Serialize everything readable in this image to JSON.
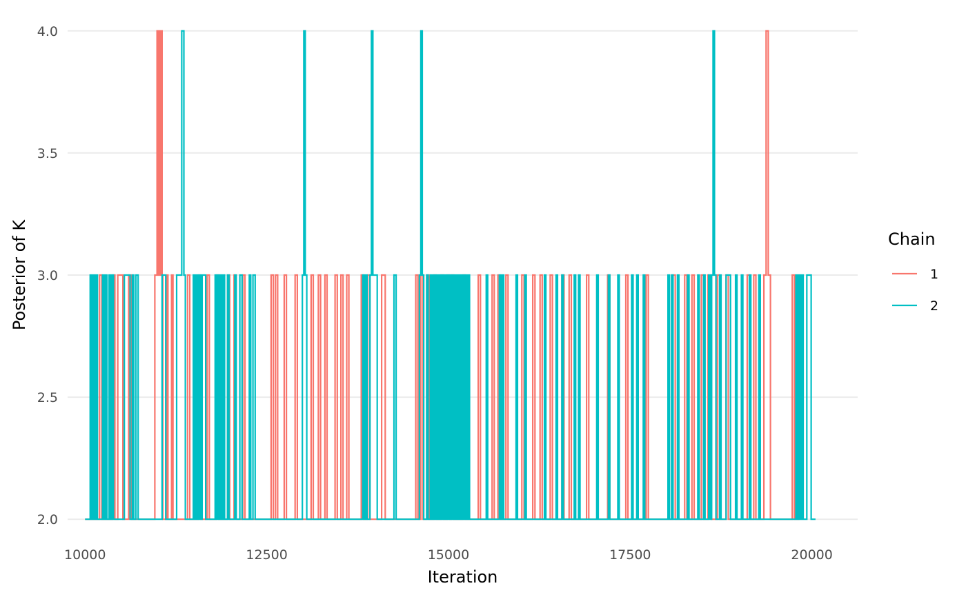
{
  "chart_data": {
    "type": "line",
    "step": "hv",
    "title": "",
    "xlabel": "Iteration",
    "ylabel": "Posterior of K",
    "xlim": [
      9760,
      20630
    ],
    "ylim": [
      1.93,
      4.07
    ],
    "x_ticks": [
      10000,
      12500,
      15000,
      17500,
      20000
    ],
    "x_tick_labels": [
      "10000",
      "12500",
      "15000",
      "17500",
      "20000"
    ],
    "y_ticks": [
      2.0,
      2.5,
      3.0,
      3.5,
      4.0
    ],
    "y_tick_labels": [
      "2.0",
      "2.5",
      "3.0",
      "3.5",
      "4.0"
    ],
    "grid": true,
    "legend": {
      "title": "Chain",
      "position": "right"
    },
    "series": [
      {
        "name": "1",
        "color": "#F8766D",
        "points": [
          [
            10000,
            2
          ],
          [
            10200,
            3
          ],
          [
            10230,
            2
          ],
          [
            10380,
            3
          ],
          [
            10410,
            2
          ],
          [
            10450,
            3
          ],
          [
            10500,
            3
          ],
          [
            10520,
            2
          ],
          [
            10600,
            3
          ],
          [
            10640,
            2
          ],
          [
            10960,
            3
          ],
          [
            10990,
            4
          ],
          [
            11000,
            3
          ],
          [
            11010,
            4
          ],
          [
            11020,
            3
          ],
          [
            11030,
            4
          ],
          [
            11040,
            3
          ],
          [
            11050,
            4
          ],
          [
            11060,
            3
          ],
          [
            11070,
            2
          ],
          [
            11120,
            3
          ],
          [
            11140,
            2
          ],
          [
            11190,
            3
          ],
          [
            11210,
            2
          ],
          [
            11410,
            3
          ],
          [
            11440,
            2
          ],
          [
            11560,
            3
          ],
          [
            11590,
            2
          ],
          [
            11680,
            3
          ],
          [
            11710,
            2
          ],
          [
            11810,
            3
          ],
          [
            11840,
            2
          ],
          [
            11960,
            3
          ],
          [
            11990,
            2
          ],
          [
            12050,
            3
          ],
          [
            12080,
            2
          ],
          [
            12170,
            3
          ],
          [
            12200,
            2
          ],
          [
            12560,
            3
          ],
          [
            12590,
            2
          ],
          [
            12620,
            3
          ],
          [
            12650,
            2
          ],
          [
            12740,
            3
          ],
          [
            12770,
            2
          ],
          [
            12890,
            3
          ],
          [
            12920,
            2
          ],
          [
            13110,
            3
          ],
          [
            13140,
            2
          ],
          [
            13210,
            3
          ],
          [
            13240,
            2
          ],
          [
            13300,
            3
          ],
          [
            13330,
            2
          ],
          [
            13440,
            3
          ],
          [
            13470,
            2
          ],
          [
            13520,
            3
          ],
          [
            13550,
            2
          ],
          [
            13600,
            3
          ],
          [
            13630,
            2
          ],
          [
            13800,
            3
          ],
          [
            13830,
            2
          ],
          [
            13890,
            3
          ],
          [
            13920,
            2
          ],
          [
            14080,
            3
          ],
          [
            14130,
            2
          ],
          [
            14550,
            3
          ],
          [
            14580,
            2
          ],
          [
            14620,
            3
          ],
          [
            14650,
            2
          ],
          [
            14700,
            3
          ],
          [
            14730,
            2
          ],
          [
            14800,
            3
          ],
          [
            14830,
            2
          ],
          [
            14900,
            3
          ],
          [
            14930,
            2
          ],
          [
            14980,
            3
          ],
          [
            15010,
            2
          ],
          [
            15040,
            3
          ],
          [
            15070,
            2
          ],
          [
            15200,
            3
          ],
          [
            15230,
            2
          ],
          [
            15410,
            3
          ],
          [
            15440,
            2
          ],
          [
            15600,
            3
          ],
          [
            15630,
            2
          ],
          [
            15680,
            3
          ],
          [
            15710,
            2
          ],
          [
            15790,
            3
          ],
          [
            15820,
            2
          ],
          [
            16010,
            3
          ],
          [
            16040,
            2
          ],
          [
            16160,
            3
          ],
          [
            16190,
            2
          ],
          [
            16260,
            3
          ],
          [
            16290,
            2
          ],
          [
            16400,
            3
          ],
          [
            16430,
            2
          ],
          [
            16560,
            3
          ],
          [
            16590,
            2
          ],
          [
            16660,
            3
          ],
          [
            16690,
            2
          ],
          [
            16900,
            3
          ],
          [
            16930,
            2
          ],
          [
            17190,
            3
          ],
          [
            17220,
            2
          ],
          [
            17440,
            3
          ],
          [
            17470,
            2
          ],
          [
            17720,
            3
          ],
          [
            17750,
            2
          ],
          [
            18090,
            3
          ],
          [
            18120,
            2
          ],
          [
            18250,
            3
          ],
          [
            18280,
            2
          ],
          [
            18350,
            3
          ],
          [
            18380,
            2
          ],
          [
            18480,
            3
          ],
          [
            18510,
            2
          ],
          [
            18570,
            3
          ],
          [
            18620,
            2
          ],
          [
            18700,
            3
          ],
          [
            18730,
            2
          ],
          [
            18820,
            3
          ],
          [
            18850,
            2
          ],
          [
            19110,
            3
          ],
          [
            19140,
            2
          ],
          [
            19200,
            3
          ],
          [
            19230,
            2
          ],
          [
            19340,
            3
          ],
          [
            19370,
            4
          ],
          [
            19400,
            3
          ],
          [
            19430,
            2
          ],
          [
            19730,
            3
          ],
          [
            19760,
            2
          ],
          [
            19830,
            2
          ]
        ]
      },
      {
        "name": "2",
        "color": "#00BFC4",
        "points": [
          [
            10000,
            2
          ],
          [
            10070,
            3
          ],
          [
            10090,
            2
          ],
          [
            10110,
            3
          ],
          [
            10130,
            2
          ],
          [
            10150,
            3
          ],
          [
            10170,
            2
          ],
          [
            10240,
            3
          ],
          [
            10260,
            2
          ],
          [
            10280,
            3
          ],
          [
            10300,
            2
          ],
          [
            10330,
            3
          ],
          [
            10350,
            2
          ],
          [
            10370,
            3
          ],
          [
            10390,
            2
          ],
          [
            10540,
            3
          ],
          [
            10620,
            2
          ],
          [
            10650,
            3
          ],
          [
            10670,
            2
          ],
          [
            10700,
            3
          ],
          [
            10730,
            2
          ],
          [
            11060,
            3
          ],
          [
            11080,
            3
          ],
          [
            11110,
            2
          ],
          [
            11260,
            3
          ],
          [
            11330,
            4
          ],
          [
            11360,
            3
          ],
          [
            11380,
            2
          ],
          [
            11490,
            3
          ],
          [
            11510,
            2
          ],
          [
            11530,
            3
          ],
          [
            11550,
            2
          ],
          [
            11570,
            3
          ],
          [
            11590,
            2
          ],
          [
            11610,
            3
          ],
          [
            11660,
            2
          ],
          [
            11790,
            3
          ],
          [
            11810,
            2
          ],
          [
            11820,
            3
          ],
          [
            11840,
            2
          ],
          [
            11860,
            3
          ],
          [
            11880,
            2
          ],
          [
            11900,
            3
          ],
          [
            11920,
            2
          ],
          [
            11960,
            3
          ],
          [
            11980,
            2
          ],
          [
            12060,
            3
          ],
          [
            12080,
            2
          ],
          [
            12130,
            3
          ],
          [
            12160,
            2
          ],
          [
            12260,
            3
          ],
          [
            12280,
            2
          ],
          [
            12310,
            3
          ],
          [
            12340,
            2
          ],
          [
            12990,
            3
          ],
          [
            13010,
            4
          ],
          [
            13030,
            3
          ],
          [
            13050,
            2
          ],
          [
            13820,
            3
          ],
          [
            13840,
            2
          ],
          [
            13860,
            3
          ],
          [
            13880,
            2
          ],
          [
            13920,
            3
          ],
          [
            13940,
            4
          ],
          [
            13960,
            3
          ],
          [
            14020,
            2
          ],
          [
            14250,
            3
          ],
          [
            14280,
            2
          ],
          [
            14600,
            3
          ],
          [
            14620,
            4
          ],
          [
            14640,
            3
          ],
          [
            14660,
            2
          ],
          [
            14700,
            3
          ],
          [
            14720,
            2
          ],
          [
            14750,
            3
          ],
          [
            14770,
            2
          ],
          [
            14790,
            3
          ],
          [
            14810,
            2
          ],
          [
            14830,
            3
          ],
          [
            14850,
            2
          ],
          [
            14870,
            3
          ],
          [
            14890,
            2
          ],
          [
            14910,
            3
          ],
          [
            14930,
            2
          ],
          [
            14950,
            3
          ],
          [
            14970,
            2
          ],
          [
            14990,
            3
          ],
          [
            15010,
            2
          ],
          [
            15030,
            3
          ],
          [
            15050,
            2
          ],
          [
            15070,
            3
          ],
          [
            15090,
            2
          ],
          [
            15110,
            3
          ],
          [
            15130,
            2
          ],
          [
            15150,
            3
          ],
          [
            15170,
            2
          ],
          [
            15190,
            3
          ],
          [
            15210,
            2
          ],
          [
            15230,
            3
          ],
          [
            15250,
            2
          ],
          [
            15270,
            3
          ],
          [
            15290,
            2
          ],
          [
            15520,
            3
          ],
          [
            15540,
            2
          ],
          [
            15700,
            3
          ],
          [
            15720,
            2
          ],
          [
            15740,
            3
          ],
          [
            15760,
            2
          ],
          [
            15930,
            3
          ],
          [
            15950,
            2
          ],
          [
            16050,
            3
          ],
          [
            16070,
            2
          ],
          [
            16320,
            3
          ],
          [
            16340,
            2
          ],
          [
            16480,
            3
          ],
          [
            16500,
            2
          ],
          [
            16560,
            3
          ],
          [
            16580,
            2
          ],
          [
            16730,
            3
          ],
          [
            16750,
            2
          ],
          [
            16790,
            3
          ],
          [
            16810,
            2
          ],
          [
            17040,
            3
          ],
          [
            17060,
            2
          ],
          [
            17200,
            3
          ],
          [
            17220,
            2
          ],
          [
            17330,
            3
          ],
          [
            17350,
            2
          ],
          [
            17520,
            3
          ],
          [
            17540,
            2
          ],
          [
            17590,
            3
          ],
          [
            17610,
            2
          ],
          [
            17680,
            3
          ],
          [
            17700,
            2
          ],
          [
            18020,
            3
          ],
          [
            18040,
            2
          ],
          [
            18070,
            3
          ],
          [
            18090,
            2
          ],
          [
            18150,
            3
          ],
          [
            18170,
            2
          ],
          [
            18290,
            3
          ],
          [
            18310,
            2
          ],
          [
            18430,
            3
          ],
          [
            18450,
            2
          ],
          [
            18510,
            3
          ],
          [
            18530,
            2
          ],
          [
            18580,
            3
          ],
          [
            18600,
            2
          ],
          [
            18620,
            3
          ],
          [
            18640,
            4
          ],
          [
            18660,
            3
          ],
          [
            18680,
            2
          ],
          [
            18730,
            3
          ],
          [
            18750,
            2
          ],
          [
            18820,
            3
          ],
          [
            18880,
            2
          ],
          [
            18950,
            3
          ],
          [
            18970,
            2
          ],
          [
            19030,
            3
          ],
          [
            19050,
            2
          ],
          [
            19140,
            3
          ],
          [
            19160,
            2
          ],
          [
            19270,
            3
          ],
          [
            19290,
            2
          ],
          [
            19780,
            3
          ],
          [
            19800,
            2
          ],
          [
            19820,
            3
          ],
          [
            19840,
            2
          ],
          [
            19860,
            3
          ],
          [
            19880,
            2
          ],
          [
            19930,
            3
          ],
          [
            19990,
            2
          ],
          [
            20050,
            2
          ]
        ]
      }
    ]
  }
}
